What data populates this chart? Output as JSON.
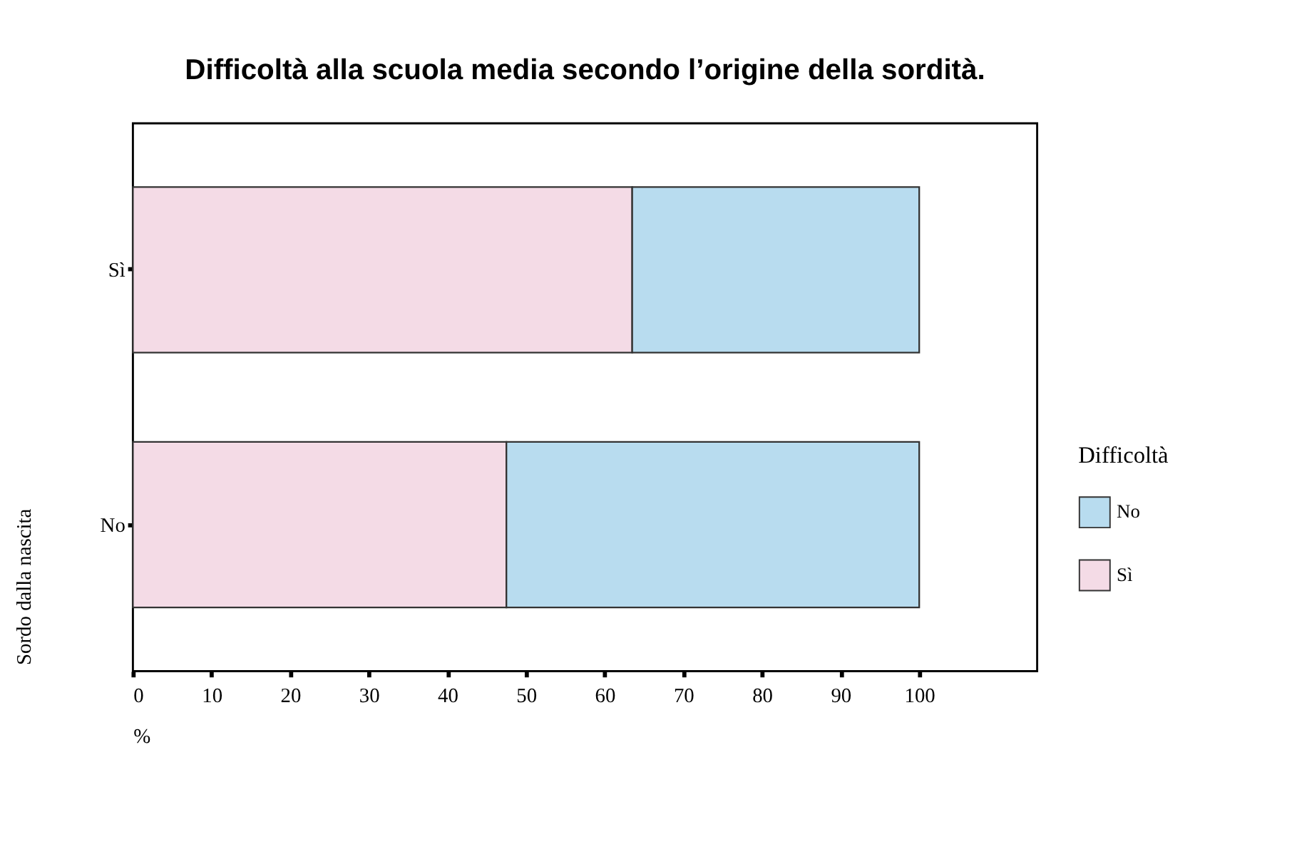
{
  "chart_data": {
    "type": "bar",
    "orientation": "horizontal",
    "stacked": true,
    "title": "Difficoltà alla scuola media secondo l’origine della sordità.",
    "xlabel": "%",
    "ylabel": "Sordo dalla nascita",
    "legend_title": "Difficoltà",
    "categories": [
      "Sì",
      "No"
    ],
    "series": [
      {
        "name": "Sì",
        "color": "#f4dbe6",
        "values": [
          63.5,
          47.5
        ]
      },
      {
        "name": "No",
        "color": "#b8dcef",
        "values": [
          36.5,
          52.5
        ]
      }
    ],
    "xlim": [
      0,
      115
    ],
    "xticks": [
      0,
      10,
      20,
      30,
      40,
      50,
      60,
      70,
      80,
      90,
      100
    ],
    "grid": false,
    "legend": "bottom right"
  }
}
